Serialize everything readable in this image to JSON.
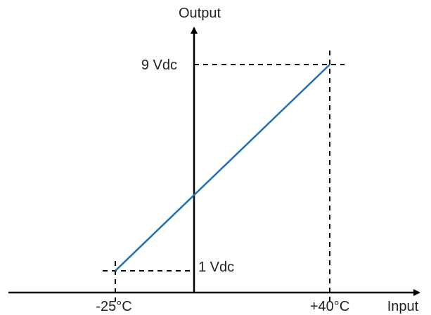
{
  "chart_data": {
    "type": "line",
    "title": "",
    "xlabel": "Input",
    "ylabel": "Output",
    "x_tick_labels": [
      "-25°C",
      "+40°C"
    ],
    "y_tick_labels": [
      "1 Vdc",
      "9 Vdc"
    ],
    "series": [
      {
        "x": [
          -25,
          40
        ],
        "y": [
          1,
          9
        ]
      }
    ],
    "grid": false,
    "colors": {
      "axes": "#000000",
      "series": "#1f6fb5",
      "text": "#222222"
    }
  }
}
